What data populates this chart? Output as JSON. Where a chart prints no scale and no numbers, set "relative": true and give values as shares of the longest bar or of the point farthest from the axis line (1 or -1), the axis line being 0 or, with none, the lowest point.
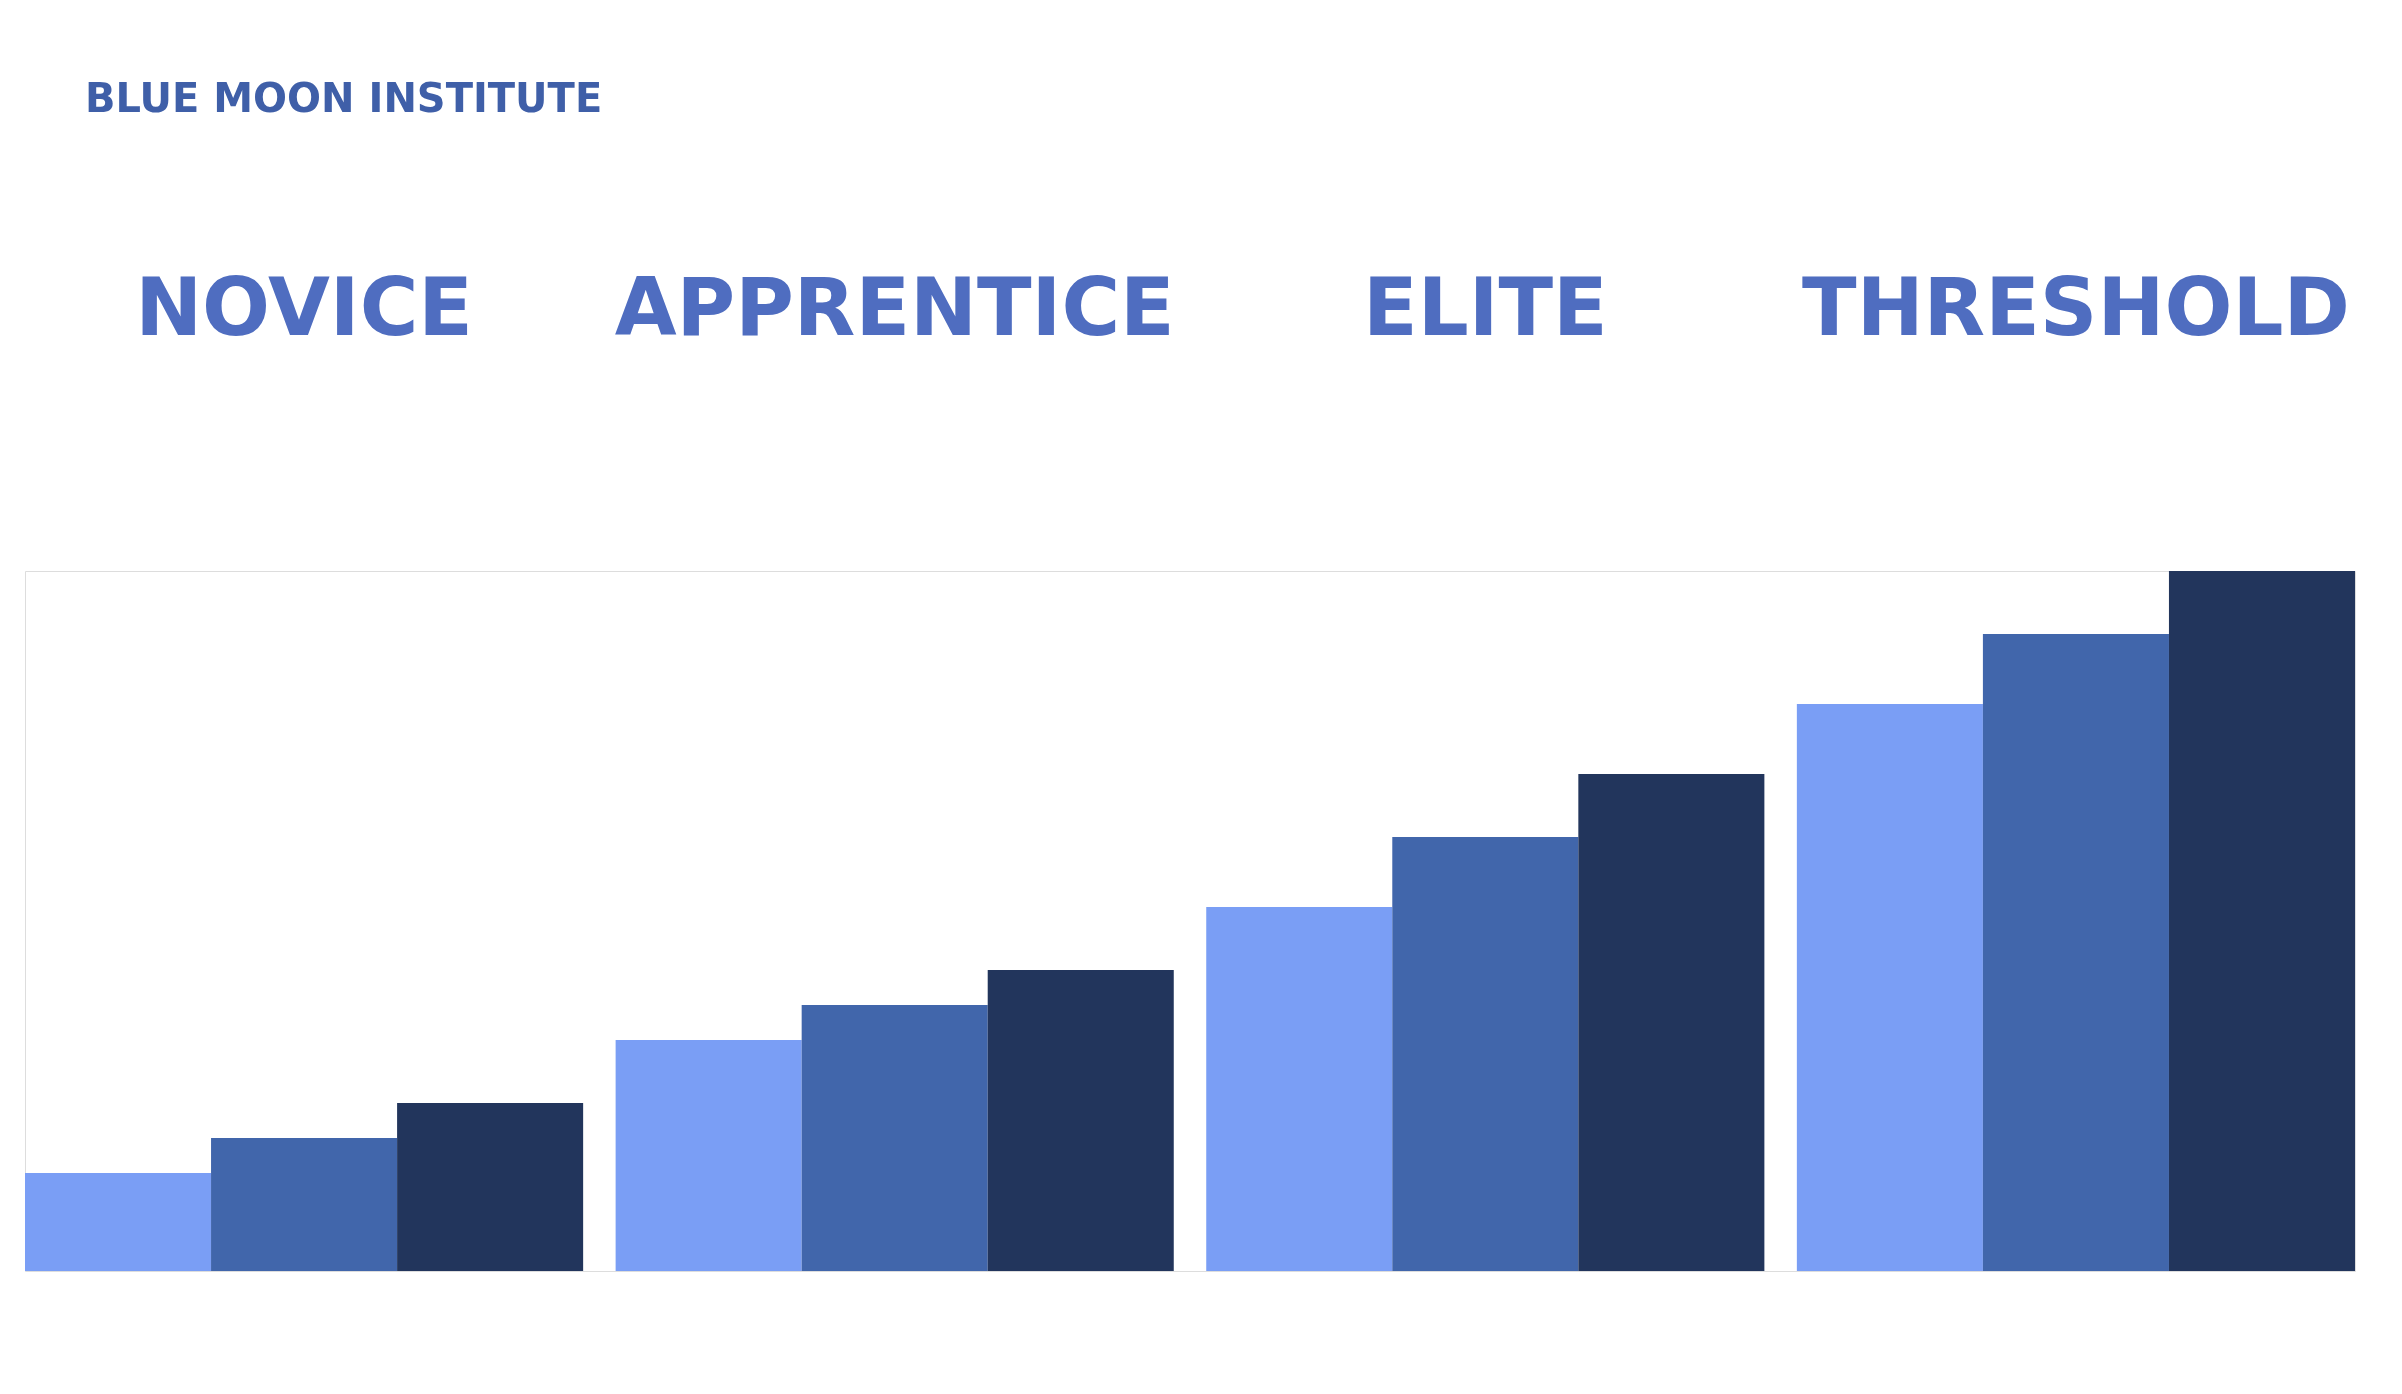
{
  "chart_data": {
    "type": "bar",
    "title": "BLUE MOON INSTITUTE",
    "relative": true,
    "legend": false,
    "categories": [
      "NOVICE",
      "APPRENTICE",
      "ELITE",
      "THRESHOLD"
    ],
    "series": [
      {
        "color": "#7a9ef5",
        "values": [
          0.14,
          0.33,
          0.52,
          0.81
        ]
      },
      {
        "color": "#4166ab",
        "values": [
          0.19,
          0.38,
          0.62,
          0.91
        ]
      },
      {
        "color": "#22355c",
        "values": [
          0.24,
          0.43,
          0.71,
          1
        ]
      }
    ]
  }
}
